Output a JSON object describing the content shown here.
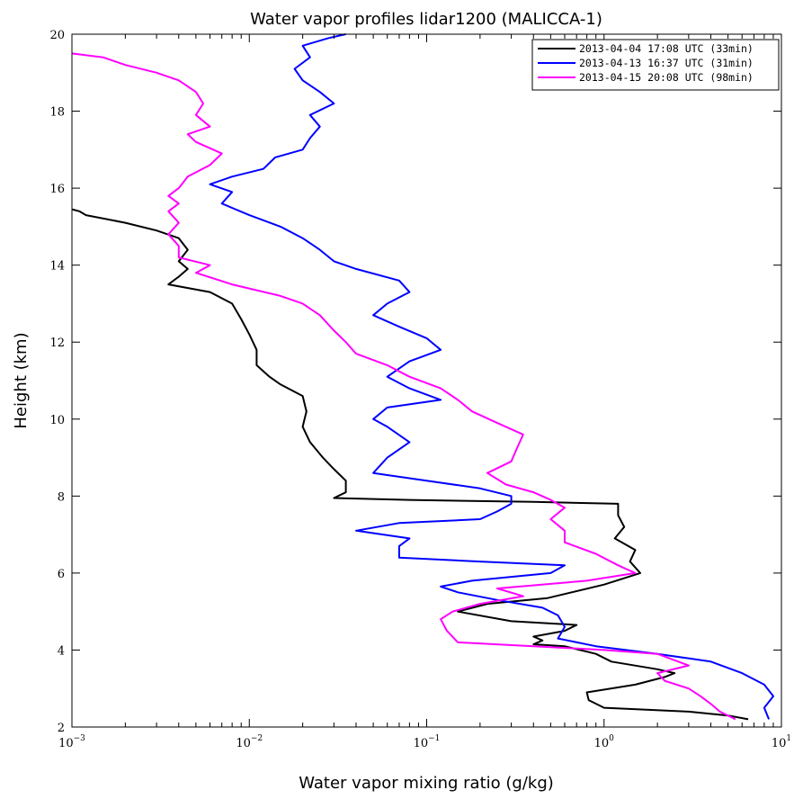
{
  "chart_data": {
    "type": "line",
    "title": "Water vapor profiles lidar1200 (MALICCA-1)",
    "xlabel": "Water vapor mixing ratio (g/kg)",
    "ylabel": "Height (km)",
    "xscale": "log",
    "xlim": [
      0.001,
      10
    ],
    "ylim": [
      2,
      20
    ],
    "x_ticks": [
      {
        "base": "10",
        "exp": "−3"
      },
      {
        "base": "10",
        "exp": "−2"
      },
      {
        "base": "10",
        "exp": "−1"
      },
      {
        "base": "10",
        "exp": "0"
      },
      {
        "base": "10",
        "exp": "1"
      }
    ],
    "y_ticks": [
      "2",
      "4",
      "6",
      "8",
      "10",
      "12",
      "14",
      "16",
      "18",
      "20"
    ],
    "y_tick_values": [
      2,
      4,
      6,
      8,
      10,
      12,
      14,
      16,
      18,
      20
    ],
    "legend_position": "top-right",
    "grid": false,
    "series": [
      {
        "name": "2013-04-04 17:08 UTC (33min)",
        "color": "#000000",
        "points": [
          [
            6.5,
            2.2
          ],
          [
            5.0,
            2.3
          ],
          [
            3.0,
            2.4
          ],
          [
            1.0,
            2.5
          ],
          [
            0.82,
            2.7
          ],
          [
            0.8,
            2.9
          ],
          [
            1.5,
            3.1
          ],
          [
            2.2,
            3.3
          ],
          [
            2.5,
            3.4
          ],
          [
            2.0,
            3.5
          ],
          [
            1.1,
            3.7
          ],
          [
            0.9,
            3.9
          ],
          [
            0.6,
            4.1
          ],
          [
            0.4,
            4.15
          ],
          [
            0.45,
            4.25
          ],
          [
            0.4,
            4.35
          ],
          [
            0.6,
            4.5
          ],
          [
            0.7,
            4.65
          ],
          [
            0.3,
            4.75
          ],
          [
            0.15,
            5.0
          ],
          [
            0.22,
            5.2
          ],
          [
            0.48,
            5.35
          ],
          [
            1.0,
            5.7
          ],
          [
            1.6,
            6.0
          ],
          [
            1.4,
            6.3
          ],
          [
            1.5,
            6.6
          ],
          [
            1.15,
            6.9
          ],
          [
            1.3,
            7.2
          ],
          [
            1.2,
            7.5
          ],
          [
            1.2,
            7.8
          ],
          [
            0.4,
            7.85
          ],
          [
            0.08,
            7.9
          ],
          [
            0.03,
            7.95
          ],
          [
            0.035,
            8.1
          ],
          [
            0.035,
            8.4
          ],
          [
            0.03,
            8.7
          ],
          [
            0.026,
            9.0
          ],
          [
            0.022,
            9.4
          ],
          [
            0.02,
            9.8
          ],
          [
            0.021,
            10.2
          ],
          [
            0.02,
            10.6
          ],
          [
            0.015,
            10.9
          ],
          [
            0.013,
            11.1
          ],
          [
            0.011,
            11.4
          ],
          [
            0.011,
            11.8
          ],
          [
            0.01,
            12.2
          ],
          [
            0.009,
            12.6
          ],
          [
            0.008,
            13.0
          ],
          [
            0.006,
            13.3
          ],
          [
            0.0035,
            13.5
          ],
          [
            0.004,
            13.7
          ],
          [
            0.0045,
            13.9
          ],
          [
            0.004,
            14.1
          ],
          [
            0.0045,
            14.4
          ],
          [
            0.004,
            14.7
          ],
          [
            0.003,
            14.9
          ],
          [
            0.002,
            15.1
          ],
          [
            0.0012,
            15.3
          ],
          [
            0.0011,
            15.4
          ],
          [
            0.001,
            15.45
          ]
        ]
      },
      {
        "name": "2013-04-13 16:37 UTC (31min)",
        "color": "#0000ff",
        "points": [
          [
            8.5,
            2.2
          ],
          [
            8.0,
            2.5
          ],
          [
            9.0,
            2.8
          ],
          [
            8.0,
            3.1
          ],
          [
            6.0,
            3.4
          ],
          [
            4.0,
            3.7
          ],
          [
            2.0,
            3.9
          ],
          [
            0.9,
            4.1
          ],
          [
            0.55,
            4.3
          ],
          [
            0.6,
            4.6
          ],
          [
            0.55,
            4.9
          ],
          [
            0.45,
            5.1
          ],
          [
            0.25,
            5.3
          ],
          [
            0.15,
            5.5
          ],
          [
            0.12,
            5.65
          ],
          [
            0.18,
            5.8
          ],
          [
            0.5,
            6.0
          ],
          [
            0.6,
            6.2
          ],
          [
            0.2,
            6.3
          ],
          [
            0.07,
            6.4
          ],
          [
            0.07,
            6.7
          ],
          [
            0.08,
            6.9
          ],
          [
            0.04,
            7.1
          ],
          [
            0.07,
            7.3
          ],
          [
            0.2,
            7.4
          ],
          [
            0.25,
            7.6
          ],
          [
            0.3,
            7.8
          ],
          [
            0.3,
            8.0
          ],
          [
            0.2,
            8.2
          ],
          [
            0.1,
            8.4
          ],
          [
            0.05,
            8.6
          ],
          [
            0.06,
            9.0
          ],
          [
            0.08,
            9.4
          ],
          [
            0.06,
            9.8
          ],
          [
            0.05,
            10.0
          ],
          [
            0.06,
            10.3
          ],
          [
            0.12,
            10.5
          ],
          [
            0.08,
            10.8
          ],
          [
            0.06,
            11.1
          ],
          [
            0.08,
            11.5
          ],
          [
            0.12,
            11.8
          ],
          [
            0.1,
            12.1
          ],
          [
            0.07,
            12.4
          ],
          [
            0.05,
            12.7
          ],
          [
            0.06,
            13.0
          ],
          [
            0.08,
            13.3
          ],
          [
            0.07,
            13.6
          ],
          [
            0.04,
            13.9
          ],
          [
            0.03,
            14.1
          ],
          [
            0.025,
            14.4
          ],
          [
            0.02,
            14.7
          ],
          [
            0.015,
            15.0
          ],
          [
            0.01,
            15.3
          ],
          [
            0.007,
            15.6
          ],
          [
            0.008,
            15.9
          ],
          [
            0.006,
            16.1
          ],
          [
            0.008,
            16.3
          ],
          [
            0.012,
            16.5
          ],
          [
            0.014,
            16.8
          ],
          [
            0.02,
            17.0
          ],
          [
            0.022,
            17.3
          ],
          [
            0.025,
            17.6
          ],
          [
            0.022,
            17.9
          ],
          [
            0.03,
            18.2
          ],
          [
            0.025,
            18.5
          ],
          [
            0.02,
            18.8
          ],
          [
            0.018,
            19.1
          ],
          [
            0.022,
            19.4
          ],
          [
            0.02,
            19.7
          ],
          [
            0.028,
            19.9
          ],
          [
            0.035,
            20.0
          ]
        ]
      },
      {
        "name": "2013-04-15 20:08 UTC (98min)",
        "color": "#ff00ff",
        "points": [
          [
            5.5,
            2.2
          ],
          [
            4.5,
            2.4
          ],
          [
            4.0,
            2.6
          ],
          [
            3.5,
            2.8
          ],
          [
            3.0,
            3.0
          ],
          [
            2.2,
            3.2
          ],
          [
            2.0,
            3.4
          ],
          [
            3.0,
            3.6
          ],
          [
            2.0,
            3.9
          ],
          [
            1.0,
            4.0
          ],
          [
            0.4,
            4.1
          ],
          [
            0.15,
            4.2
          ],
          [
            0.13,
            4.5
          ],
          [
            0.12,
            4.8
          ],
          [
            0.14,
            5.0
          ],
          [
            0.2,
            5.2
          ],
          [
            0.35,
            5.4
          ],
          [
            0.25,
            5.6
          ],
          [
            0.8,
            5.8
          ],
          [
            1.5,
            6.0
          ],
          [
            1.2,
            6.2
          ],
          [
            0.9,
            6.5
          ],
          [
            0.6,
            6.8
          ],
          [
            0.6,
            7.1
          ],
          [
            0.5,
            7.4
          ],
          [
            0.6,
            7.7
          ],
          [
            0.5,
            7.9
          ],
          [
            0.4,
            8.1
          ],
          [
            0.28,
            8.3
          ],
          [
            0.22,
            8.6
          ],
          [
            0.3,
            8.9
          ],
          [
            0.32,
            9.2
          ],
          [
            0.35,
            9.6
          ],
          [
            0.25,
            9.9
          ],
          [
            0.18,
            10.2
          ],
          [
            0.15,
            10.5
          ],
          [
            0.12,
            10.8
          ],
          [
            0.08,
            11.1
          ],
          [
            0.06,
            11.4
          ],
          [
            0.04,
            11.7
          ],
          [
            0.035,
            12.0
          ],
          [
            0.03,
            12.3
          ],
          [
            0.025,
            12.7
          ],
          [
            0.02,
            13.0
          ],
          [
            0.015,
            13.2
          ],
          [
            0.008,
            13.5
          ],
          [
            0.005,
            13.8
          ],
          [
            0.006,
            14.0
          ],
          [
            0.004,
            14.2
          ],
          [
            0.004,
            14.5
          ],
          [
            0.0035,
            14.8
          ],
          [
            0.004,
            15.1
          ],
          [
            0.0035,
            15.4
          ],
          [
            0.004,
            15.6
          ],
          [
            0.0035,
            15.8
          ],
          [
            0.004,
            16.0
          ],
          [
            0.0045,
            16.3
          ],
          [
            0.006,
            16.6
          ],
          [
            0.007,
            16.9
          ],
          [
            0.005,
            17.2
          ],
          [
            0.0045,
            17.4
          ],
          [
            0.006,
            17.6
          ],
          [
            0.005,
            17.9
          ],
          [
            0.0055,
            18.2
          ],
          [
            0.005,
            18.5
          ],
          [
            0.004,
            18.8
          ],
          [
            0.003,
            19.0
          ],
          [
            0.002,
            19.2
          ],
          [
            0.0015,
            19.4
          ],
          [
            0.001,
            19.5
          ]
        ]
      }
    ]
  }
}
